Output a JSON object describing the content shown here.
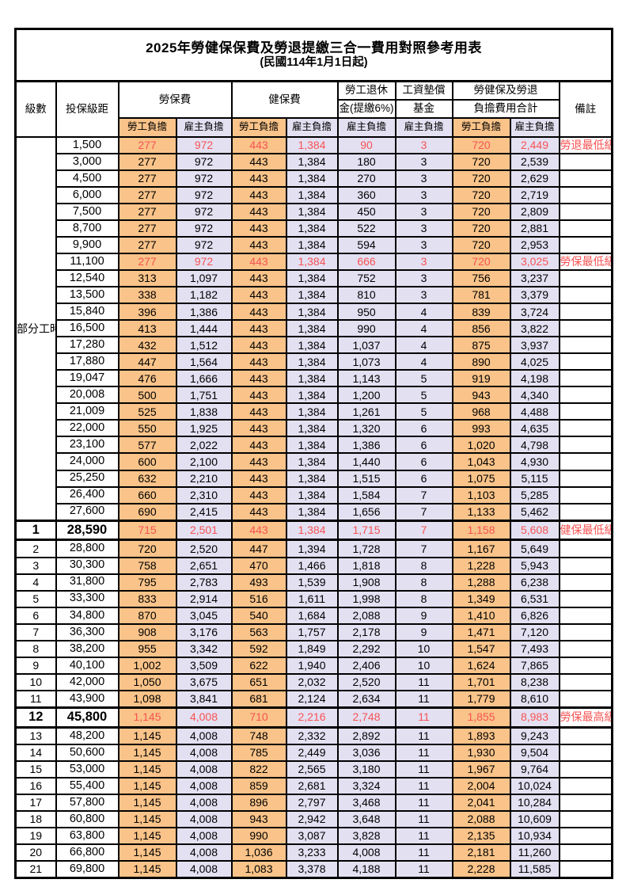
{
  "doc": {
    "title_line": "2025年勞健保保費及勞退提繳三合一費用對照參考用表",
    "subtitle": "(民國114年1月1日起)"
  },
  "colors": {
    "worker_bg": "#F9C389",
    "employer_bg": "#E3E0F2",
    "highlight_red": "#F75353",
    "border": "#000000"
  },
  "header": {
    "level": "級數",
    "bracket": "投保級距",
    "labor_insurance": "勞保費",
    "health_insurance": "健保費",
    "pension_line1": "勞工退休",
    "pension_line2": "金(提繳6%)",
    "wage_fund_line1": "工資墊償",
    "wage_fund_line2": "基金",
    "total_line1": "勞健保及勞退",
    "total_line2": "負擔費用合計",
    "remark": "備註",
    "worker": "勞工負擔",
    "employer": "雇主負擔"
  },
  "part_time_label": "部分工時",
  "rows": [
    {
      "level": "",
      "bracket": "1,500",
      "li_w": "277",
      "li_e": "972",
      "hi_w": "443",
      "hi_e": "1,384",
      "pension": "90",
      "fund": "3",
      "tot_w": "720",
      "tot_e": "2,449",
      "remark": "勞退最低級距",
      "flag": "red"
    },
    {
      "level": "",
      "bracket": "3,000",
      "li_w": "277",
      "li_e": "972",
      "hi_w": "443",
      "hi_e": "1,384",
      "pension": "180",
      "fund": "3",
      "tot_w": "720",
      "tot_e": "2,539",
      "remark": "",
      "flag": ""
    },
    {
      "level": "",
      "bracket": "4,500",
      "li_w": "277",
      "li_e": "972",
      "hi_w": "443",
      "hi_e": "1,384",
      "pension": "270",
      "fund": "3",
      "tot_w": "720",
      "tot_e": "2,629",
      "remark": "",
      "flag": ""
    },
    {
      "level": "",
      "bracket": "6,000",
      "li_w": "277",
      "li_e": "972",
      "hi_w": "443",
      "hi_e": "1,384",
      "pension": "360",
      "fund": "3",
      "tot_w": "720",
      "tot_e": "2,719",
      "remark": "",
      "flag": ""
    },
    {
      "level": "",
      "bracket": "7,500",
      "li_w": "277",
      "li_e": "972",
      "hi_w": "443",
      "hi_e": "1,384",
      "pension": "450",
      "fund": "3",
      "tot_w": "720",
      "tot_e": "2,809",
      "remark": "",
      "flag": ""
    },
    {
      "level": "",
      "bracket": "8,700",
      "li_w": "277",
      "li_e": "972",
      "hi_w": "443",
      "hi_e": "1,384",
      "pension": "522",
      "fund": "3",
      "tot_w": "720",
      "tot_e": "2,881",
      "remark": "",
      "flag": ""
    },
    {
      "level": "",
      "bracket": "9,900",
      "li_w": "277",
      "li_e": "972",
      "hi_w": "443",
      "hi_e": "1,384",
      "pension": "594",
      "fund": "3",
      "tot_w": "720",
      "tot_e": "2,953",
      "remark": "",
      "flag": ""
    },
    {
      "level": "",
      "bracket": "11,100",
      "li_w": "277",
      "li_e": "972",
      "hi_w": "443",
      "hi_e": "1,384",
      "pension": "666",
      "fund": "3",
      "tot_w": "720",
      "tot_e": "3,025",
      "remark": "勞保最低級距",
      "flag": "red"
    },
    {
      "level": "",
      "bracket": "12,540",
      "li_w": "313",
      "li_e": "1,097",
      "hi_w": "443",
      "hi_e": "1,384",
      "pension": "752",
      "fund": "3",
      "tot_w": "756",
      "tot_e": "3,237",
      "remark": "",
      "flag": ""
    },
    {
      "level": "",
      "bracket": "13,500",
      "li_w": "338",
      "li_e": "1,182",
      "hi_w": "443",
      "hi_e": "1,384",
      "pension": "810",
      "fund": "3",
      "tot_w": "781",
      "tot_e": "3,379",
      "remark": "",
      "flag": ""
    },
    {
      "level": "",
      "bracket": "15,840",
      "li_w": "396",
      "li_e": "1,386",
      "hi_w": "443",
      "hi_e": "1,384",
      "pension": "950",
      "fund": "4",
      "tot_w": "839",
      "tot_e": "3,724",
      "remark": "",
      "flag": ""
    },
    {
      "level": "",
      "bracket": "16,500",
      "li_w": "413",
      "li_e": "1,444",
      "hi_w": "443",
      "hi_e": "1,384",
      "pension": "990",
      "fund": "4",
      "tot_w": "856",
      "tot_e": "3,822",
      "remark": "",
      "flag": ""
    },
    {
      "level": "",
      "bracket": "17,280",
      "li_w": "432",
      "li_e": "1,512",
      "hi_w": "443",
      "hi_e": "1,384",
      "pension": "1,037",
      "fund": "4",
      "tot_w": "875",
      "tot_e": "3,937",
      "remark": "",
      "flag": ""
    },
    {
      "level": "",
      "bracket": "17,880",
      "li_w": "447",
      "li_e": "1,564",
      "hi_w": "443",
      "hi_e": "1,384",
      "pension": "1,073",
      "fund": "4",
      "tot_w": "890",
      "tot_e": "4,025",
      "remark": "",
      "flag": ""
    },
    {
      "level": "",
      "bracket": "19,047",
      "li_w": "476",
      "li_e": "1,666",
      "hi_w": "443",
      "hi_e": "1,384",
      "pension": "1,143",
      "fund": "5",
      "tot_w": "919",
      "tot_e": "4,198",
      "remark": "",
      "flag": ""
    },
    {
      "level": "",
      "bracket": "20,008",
      "li_w": "500",
      "li_e": "1,751",
      "hi_w": "443",
      "hi_e": "1,384",
      "pension": "1,200",
      "fund": "5",
      "tot_w": "943",
      "tot_e": "4,340",
      "remark": "",
      "flag": ""
    },
    {
      "level": "",
      "bracket": "21,009",
      "li_w": "525",
      "li_e": "1,838",
      "hi_w": "443",
      "hi_e": "1,384",
      "pension": "1,261",
      "fund": "5",
      "tot_w": "968",
      "tot_e": "4,488",
      "remark": "",
      "flag": ""
    },
    {
      "level": "",
      "bracket": "22,000",
      "li_w": "550",
      "li_e": "1,925",
      "hi_w": "443",
      "hi_e": "1,384",
      "pension": "1,320",
      "fund": "6",
      "tot_w": "993",
      "tot_e": "4,635",
      "remark": "",
      "flag": ""
    },
    {
      "level": "",
      "bracket": "23,100",
      "li_w": "577",
      "li_e": "2,022",
      "hi_w": "443",
      "hi_e": "1,384",
      "pension": "1,386",
      "fund": "6",
      "tot_w": "1,020",
      "tot_e": "4,798",
      "remark": "",
      "flag": ""
    },
    {
      "level": "",
      "bracket": "24,000",
      "li_w": "600",
      "li_e": "2,100",
      "hi_w": "443",
      "hi_e": "1,384",
      "pension": "1,440",
      "fund": "6",
      "tot_w": "1,043",
      "tot_e": "4,930",
      "remark": "",
      "flag": ""
    },
    {
      "level": "",
      "bracket": "25,250",
      "li_w": "632",
      "li_e": "2,210",
      "hi_w": "443",
      "hi_e": "1,384",
      "pension": "1,515",
      "fund": "6",
      "tot_w": "1,075",
      "tot_e": "5,115",
      "remark": "",
      "flag": ""
    },
    {
      "level": "",
      "bracket": "26,400",
      "li_w": "660",
      "li_e": "2,310",
      "hi_w": "443",
      "hi_e": "1,384",
      "pension": "1,584",
      "fund": "7",
      "tot_w": "1,103",
      "tot_e": "5,285",
      "remark": "",
      "flag": ""
    },
    {
      "level": "",
      "bracket": "27,600",
      "li_w": "690",
      "li_e": "2,415",
      "hi_w": "443",
      "hi_e": "1,384",
      "pension": "1,656",
      "fund": "7",
      "tot_w": "1,133",
      "tot_e": "5,462",
      "remark": "",
      "flag": ""
    },
    {
      "level": "1",
      "bracket": "28,590",
      "li_w": "715",
      "li_e": "2,501",
      "hi_w": "443",
      "hi_e": "1,384",
      "pension": "1,715",
      "fund": "7",
      "tot_w": "1,158",
      "tot_e": "5,608",
      "remark": "健保最低級距",
      "flag": "red-bold"
    },
    {
      "level": "2",
      "bracket": "28,800",
      "li_w": "720",
      "li_e": "2,520",
      "hi_w": "447",
      "hi_e": "1,394",
      "pension": "1,728",
      "fund": "7",
      "tot_w": "1,167",
      "tot_e": "5,649",
      "remark": "",
      "flag": ""
    },
    {
      "level": "3",
      "bracket": "30,300",
      "li_w": "758",
      "li_e": "2,651",
      "hi_w": "470",
      "hi_e": "1,466",
      "pension": "1,818",
      "fund": "8",
      "tot_w": "1,228",
      "tot_e": "5,943",
      "remark": "",
      "flag": ""
    },
    {
      "level": "4",
      "bracket": "31,800",
      "li_w": "795",
      "li_e": "2,783",
      "hi_w": "493",
      "hi_e": "1,539",
      "pension": "1,908",
      "fund": "8",
      "tot_w": "1,288",
      "tot_e": "6,238",
      "remark": "",
      "flag": ""
    },
    {
      "level": "5",
      "bracket": "33,300",
      "li_w": "833",
      "li_e": "2,914",
      "hi_w": "516",
      "hi_e": "1,611",
      "pension": "1,998",
      "fund": "8",
      "tot_w": "1,349",
      "tot_e": "6,531",
      "remark": "",
      "flag": ""
    },
    {
      "level": "6",
      "bracket": "34,800",
      "li_w": "870",
      "li_e": "3,045",
      "hi_w": "540",
      "hi_e": "1,684",
      "pension": "2,088",
      "fund": "9",
      "tot_w": "1,410",
      "tot_e": "6,826",
      "remark": "",
      "flag": ""
    },
    {
      "level": "7",
      "bracket": "36,300",
      "li_w": "908",
      "li_e": "3,176",
      "hi_w": "563",
      "hi_e": "1,757",
      "pension": "2,178",
      "fund": "9",
      "tot_w": "1,471",
      "tot_e": "7,120",
      "remark": "",
      "flag": ""
    },
    {
      "level": "8",
      "bracket": "38,200",
      "li_w": "955",
      "li_e": "3,342",
      "hi_w": "592",
      "hi_e": "1,849",
      "pension": "2,292",
      "fund": "10",
      "tot_w": "1,547",
      "tot_e": "7,493",
      "remark": "",
      "flag": ""
    },
    {
      "level": "9",
      "bracket": "40,100",
      "li_w": "1,002",
      "li_e": "3,509",
      "hi_w": "622",
      "hi_e": "1,940",
      "pension": "2,406",
      "fund": "10",
      "tot_w": "1,624",
      "tot_e": "7,865",
      "remark": "",
      "flag": ""
    },
    {
      "level": "10",
      "bracket": "42,000",
      "li_w": "1,050",
      "li_e": "3,675",
      "hi_w": "651",
      "hi_e": "2,032",
      "pension": "2,520",
      "fund": "11",
      "tot_w": "1,701",
      "tot_e": "8,238",
      "remark": "",
      "flag": ""
    },
    {
      "level": "11",
      "bracket": "43,900",
      "li_w": "1,098",
      "li_e": "3,841",
      "hi_w": "681",
      "hi_e": "2,124",
      "pension": "2,634",
      "fund": "11",
      "tot_w": "1,779",
      "tot_e": "8,610",
      "remark": "",
      "flag": ""
    },
    {
      "level": "12",
      "bracket": "45,800",
      "li_w": "1,145",
      "li_e": "4,008",
      "hi_w": "710",
      "hi_e": "2,216",
      "pension": "2,748",
      "fund": "11",
      "tot_w": "1,855",
      "tot_e": "8,983",
      "remark": "勞保最高級距",
      "flag": "red-bold"
    },
    {
      "level": "13",
      "bracket": "48,200",
      "li_w": "1,145",
      "li_e": "4,008",
      "hi_w": "748",
      "hi_e": "2,332",
      "pension": "2,892",
      "fund": "11",
      "tot_w": "1,893",
      "tot_e": "9,243",
      "remark": "",
      "flag": ""
    },
    {
      "level": "14",
      "bracket": "50,600",
      "li_w": "1,145",
      "li_e": "4,008",
      "hi_w": "785",
      "hi_e": "2,449",
      "pension": "3,036",
      "fund": "11",
      "tot_w": "1,930",
      "tot_e": "9,504",
      "remark": "",
      "flag": ""
    },
    {
      "level": "15",
      "bracket": "53,000",
      "li_w": "1,145",
      "li_e": "4,008",
      "hi_w": "822",
      "hi_e": "2,565",
      "pension": "3,180",
      "fund": "11",
      "tot_w": "1,967",
      "tot_e": "9,764",
      "remark": "",
      "flag": ""
    },
    {
      "level": "16",
      "bracket": "55,400",
      "li_w": "1,145",
      "li_e": "4,008",
      "hi_w": "859",
      "hi_e": "2,681",
      "pension": "3,324",
      "fund": "11",
      "tot_w": "2,004",
      "tot_e": "10,024",
      "remark": "",
      "flag": ""
    },
    {
      "level": "17",
      "bracket": "57,800",
      "li_w": "1,145",
      "li_e": "4,008",
      "hi_w": "896",
      "hi_e": "2,797",
      "pension": "3,468",
      "fund": "11",
      "tot_w": "2,041",
      "tot_e": "10,284",
      "remark": "",
      "flag": ""
    },
    {
      "level": "18",
      "bracket": "60,800",
      "li_w": "1,145",
      "li_e": "4,008",
      "hi_w": "943",
      "hi_e": "2,942",
      "pension": "3,648",
      "fund": "11",
      "tot_w": "2,088",
      "tot_e": "10,609",
      "remark": "",
      "flag": ""
    },
    {
      "level": "19",
      "bracket": "63,800",
      "li_w": "1,145",
      "li_e": "4,008",
      "hi_w": "990",
      "hi_e": "3,087",
      "pension": "3,828",
      "fund": "11",
      "tot_w": "2,135",
      "tot_e": "10,934",
      "remark": "",
      "flag": ""
    },
    {
      "level": "20",
      "bracket": "66,800",
      "li_w": "1,145",
      "li_e": "4,008",
      "hi_w": "1,036",
      "hi_e": "3,233",
      "pension": "4,008",
      "fund": "11",
      "tot_w": "2,181",
      "tot_e": "11,260",
      "remark": "",
      "flag": ""
    },
    {
      "level": "21",
      "bracket": "69,800",
      "li_w": "1,145",
      "li_e": "4,008",
      "hi_w": "1,083",
      "hi_e": "3,378",
      "pension": "4,188",
      "fund": "11",
      "tot_w": "2,228",
      "tot_e": "11,585",
      "remark": "",
      "flag": ""
    }
  ]
}
